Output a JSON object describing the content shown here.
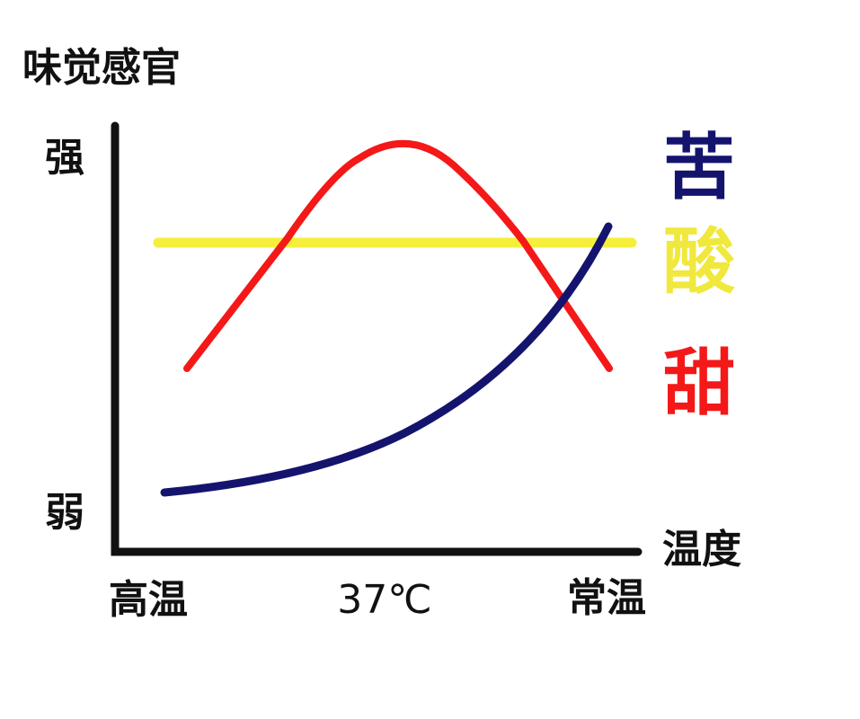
{
  "title": "味觉感官",
  "y_axis": {
    "high": "强",
    "low": "弱"
  },
  "x_axis": {
    "label": "温度",
    "categories": [
      "高温",
      "37℃",
      "常温"
    ]
  },
  "legend": [
    "苦",
    "酸",
    "甜"
  ]
}
